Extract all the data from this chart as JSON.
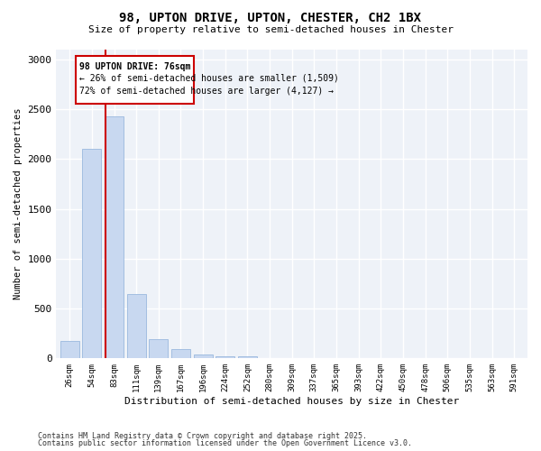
{
  "title1": "98, UPTON DRIVE, UPTON, CHESTER, CH2 1BX",
  "title2": "Size of property relative to semi-detached houses in Chester",
  "xlabel": "Distribution of semi-detached houses by size in Chester",
  "ylabel": "Number of semi-detached properties",
  "categories": [
    "26sqm",
    "54sqm",
    "83sqm",
    "111sqm",
    "139sqm",
    "167sqm",
    "196sqm",
    "224sqm",
    "252sqm",
    "280sqm",
    "309sqm",
    "337sqm",
    "365sqm",
    "393sqm",
    "422sqm",
    "450sqm",
    "478sqm",
    "506sqm",
    "535sqm",
    "563sqm",
    "591sqm"
  ],
  "values": [
    175,
    2100,
    2430,
    645,
    195,
    90,
    40,
    25,
    20,
    0,
    0,
    0,
    0,
    0,
    0,
    0,
    0,
    0,
    0,
    0,
    0
  ],
  "bar_color": "#c8d8f0",
  "bar_edge_color": "#9ab8de",
  "vline_color": "#cc0000",
  "vline_pos": 1.62,
  "annotation_title": "98 UPTON DRIVE: 76sqm",
  "annotation_line2": "← 26% of semi-detached houses are smaller (1,509)",
  "annotation_line3": "72% of semi-detached houses are larger (4,127) →",
  "annotation_box_color": "#cc0000",
  "ylim": [
    0,
    3100
  ],
  "yticks": [
    0,
    500,
    1000,
    1500,
    2000,
    2500,
    3000
  ],
  "footer1": "Contains HM Land Registry data © Crown copyright and database right 2025.",
  "footer2": "Contains public sector information licensed under the Open Government Licence v3.0.",
  "fig_bg_color": "#ffffff",
  "plot_bg_color": "#eef2f8"
}
